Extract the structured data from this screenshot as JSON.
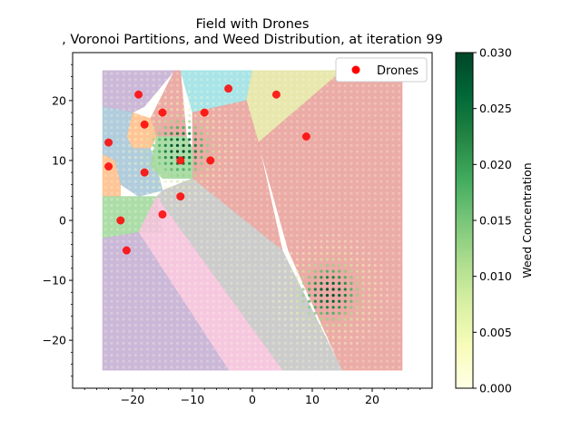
{
  "chart_data": {
    "type": "scatter",
    "title": "Field with Drones",
    "subtitle": ", Voronoi Partitions, and Weed Distribution, at iteration 99",
    "xlabel": "",
    "ylabel": "",
    "xlim": [
      -30,
      30
    ],
    "ylim": [
      -28,
      28
    ],
    "field_bounds": {
      "x": [
        -25,
        25
      ],
      "y": [
        -25,
        25
      ]
    },
    "x_ticks": [
      -20,
      -10,
      0,
      10,
      20
    ],
    "y_ticks": [
      -20,
      -10,
      0,
      10,
      20
    ],
    "x_tick_labels": [
      "−20",
      "−10",
      "0",
      "10",
      "20"
    ],
    "y_tick_labels": [
      "−20",
      "−10",
      "0",
      "10",
      "20"
    ],
    "grid": false,
    "legend": {
      "position": "top-right",
      "label": "Drones",
      "color": "#ff0000"
    },
    "drones": [
      {
        "x": -19,
        "y": 21
      },
      {
        "x": -15,
        "y": 18
      },
      {
        "x": -8,
        "y": 18
      },
      {
        "x": -4,
        "y": 22
      },
      {
        "x": 4,
        "y": 21
      },
      {
        "x": 9,
        "y": 14
      },
      {
        "x": -18,
        "y": 16
      },
      {
        "x": -24,
        "y": 13
      },
      {
        "x": -12,
        "y": 10
      },
      {
        "x": -7,
        "y": 10
      },
      {
        "x": -24,
        "y": 9
      },
      {
        "x": -18,
        "y": 8
      },
      {
        "x": -12,
        "y": 4
      },
      {
        "x": -22,
        "y": 0
      },
      {
        "x": -15,
        "y": 1
      },
      {
        "x": -21,
        "y": -5
      }
    ],
    "regions": [
      {
        "color": "#c5b0d5",
        "points": [
          [
            -25,
            25
          ],
          [
            -13,
            25
          ],
          [
            -18,
            19
          ],
          [
            -20,
            18
          ],
          [
            -25,
            19
          ]
        ]
      },
      {
        "color": "#e9a29c",
        "points": [
          [
            -13,
            25
          ],
          [
            -12,
            25
          ],
          [
            -11,
            14
          ],
          [
            -13,
            14
          ],
          [
            -16,
            14
          ],
          [
            -17,
            17
          ]
        ]
      },
      {
        "color": "#9fe1e5",
        "points": [
          [
            -12,
            25
          ],
          [
            0,
            25
          ],
          [
            -1,
            20
          ],
          [
            -10,
            18
          ]
        ]
      },
      {
        "color": "#e4e4a5",
        "points": [
          [
            0,
            25
          ],
          [
            15,
            25
          ],
          [
            1,
            13
          ],
          [
            -1,
            20
          ]
        ]
      },
      {
        "color": "#e9a29c",
        "points": [
          [
            15,
            25
          ],
          [
            25,
            25
          ],
          [
            25,
            -25
          ],
          [
            15,
            -25
          ],
          [
            6,
            -5
          ],
          [
            1,
            13
          ]
        ]
      },
      {
        "color": "#e9a29c",
        "points": [
          [
            -10,
            18
          ],
          [
            -1,
            20
          ],
          [
            1,
            13
          ],
          [
            5,
            -5
          ],
          [
            -10,
            7
          ],
          [
            -10,
            12
          ]
        ]
      },
      {
        "color": "#ffbf8c",
        "points": [
          [
            -20,
            18
          ],
          [
            -17,
            17
          ],
          [
            -16,
            14
          ],
          [
            -17,
            12
          ],
          [
            -20,
            12
          ],
          [
            -21,
            14
          ]
        ]
      },
      {
        "color": "#a9c8d9",
        "points": [
          [
            -25,
            19
          ],
          [
            -20,
            18
          ],
          [
            -21,
            14
          ],
          [
            -20,
            12
          ],
          [
            -23,
            10
          ],
          [
            -25,
            11
          ]
        ]
      },
      {
        "color": "#a9c8d9",
        "points": [
          [
            -20,
            12
          ],
          [
            -17,
            12
          ],
          [
            -16,
            9
          ],
          [
            -15,
            5
          ],
          [
            -19,
            4
          ],
          [
            -22,
            6
          ],
          [
            -23,
            10
          ]
        ]
      },
      {
        "color": "#ffbf8c",
        "points": [
          [
            -25,
            11
          ],
          [
            -23,
            10
          ],
          [
            -22,
            6
          ],
          [
            -22,
            4
          ],
          [
            -25,
            4
          ]
        ]
      },
      {
        "color": "#a3d99f",
        "points": [
          [
            -16,
            14
          ],
          [
            -11,
            14
          ],
          [
            -10,
            12
          ],
          [
            -10,
            7
          ],
          [
            -15,
            7
          ],
          [
            -17,
            9
          ]
        ]
      },
      {
        "color": "#c6c6c6",
        "points": [
          [
            -15,
            5
          ],
          [
            -10,
            7
          ],
          [
            5,
            -5
          ],
          [
            15,
            -25
          ],
          [
            5,
            -25
          ],
          [
            -16,
            4
          ]
        ]
      },
      {
        "color": "#a3d99f",
        "points": [
          [
            -25,
            4
          ],
          [
            -19,
            4
          ],
          [
            -16,
            4
          ],
          [
            -15,
            -2
          ],
          [
            -19,
            -2
          ],
          [
            -25,
            -3
          ]
        ]
      },
      {
        "color": "#f5c2dc",
        "points": [
          [
            -16,
            4
          ],
          [
            5,
            -25
          ],
          [
            -4,
            -25
          ],
          [
            -19,
            -2
          ]
        ]
      },
      {
        "color": "#c5b0d5",
        "points": [
          [
            -25,
            -3
          ],
          [
            -19,
            -2
          ],
          [
            -4,
            -25
          ],
          [
            -25,
            -25
          ]
        ]
      }
    ],
    "weed_hotspots": [
      {
        "x": -12,
        "y": 12,
        "peak": 0.03,
        "sigma": 3.5
      },
      {
        "x": 13,
        "y": -12,
        "peak": 0.03,
        "sigma": 3.5
      }
    ],
    "weed_grid_step": 1.0,
    "colorbar": {
      "label": "Weed Concentration",
      "min": 0.0,
      "max": 0.03,
      "ticks": [
        "0.000",
        "0.005",
        "0.010",
        "0.015",
        "0.020",
        "0.025",
        "0.030"
      ],
      "tick_values": [
        0,
        0.005,
        0.01,
        0.015,
        0.02,
        0.025,
        0.03
      ],
      "colormap": "YlGn"
    }
  }
}
